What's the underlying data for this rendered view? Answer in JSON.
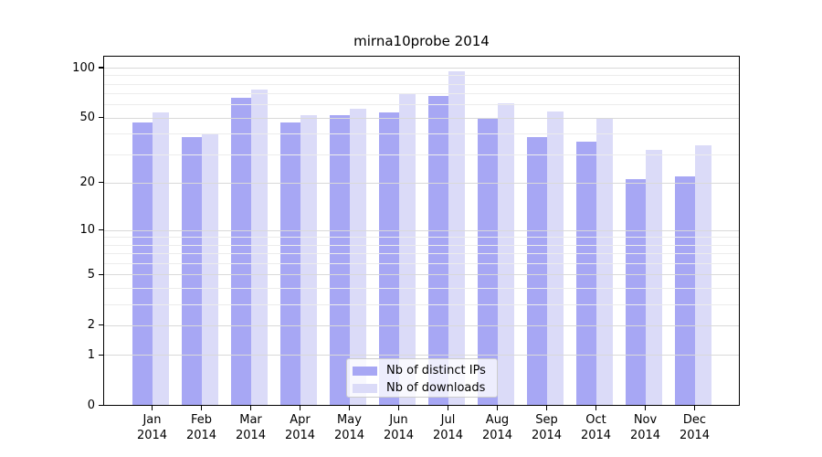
{
  "chart_data": {
    "type": "bar",
    "title": "mirna10probe 2014",
    "yscale": "log10(value+1)",
    "categories": [
      "Jan 2014",
      "Feb 2014",
      "Mar 2014",
      "Apr 2014",
      "May 2014",
      "Jun 2014",
      "Jul 2014",
      "Aug 2014",
      "Sep 2014",
      "Oct 2014",
      "Nov 2014",
      "Dec 2014"
    ],
    "series": [
      {
        "name": "Nb of distinct IPs",
        "color": "#a7a7f4",
        "values": [
          47,
          38,
          66,
          47,
          52,
          54,
          68,
          50,
          38,
          36,
          21,
          22
        ]
      },
      {
        "name": "Nb of downloads",
        "color": "#dbdbf8",
        "values": [
          54,
          40,
          74,
          52,
          57,
          70,
          95,
          61,
          55,
          50,
          32,
          34
        ]
      }
    ],
    "yticks": [
      0,
      1,
      2,
      5,
      10,
      20,
      50,
      100
    ],
    "yticks_minor": [
      3,
      4,
      6,
      7,
      8,
      9,
      30,
      40,
      60,
      70,
      80,
      90
    ],
    "ylim": [
      0,
      118
    ],
    "xlabel": "",
    "ylabel": "",
    "grid": "on",
    "legend_position": "lower center"
  },
  "colors": {
    "grid_major": "#d9d9d9",
    "grid_minor": "#ececec",
    "axis": "#000000",
    "legend_border": "#cccccc"
  }
}
